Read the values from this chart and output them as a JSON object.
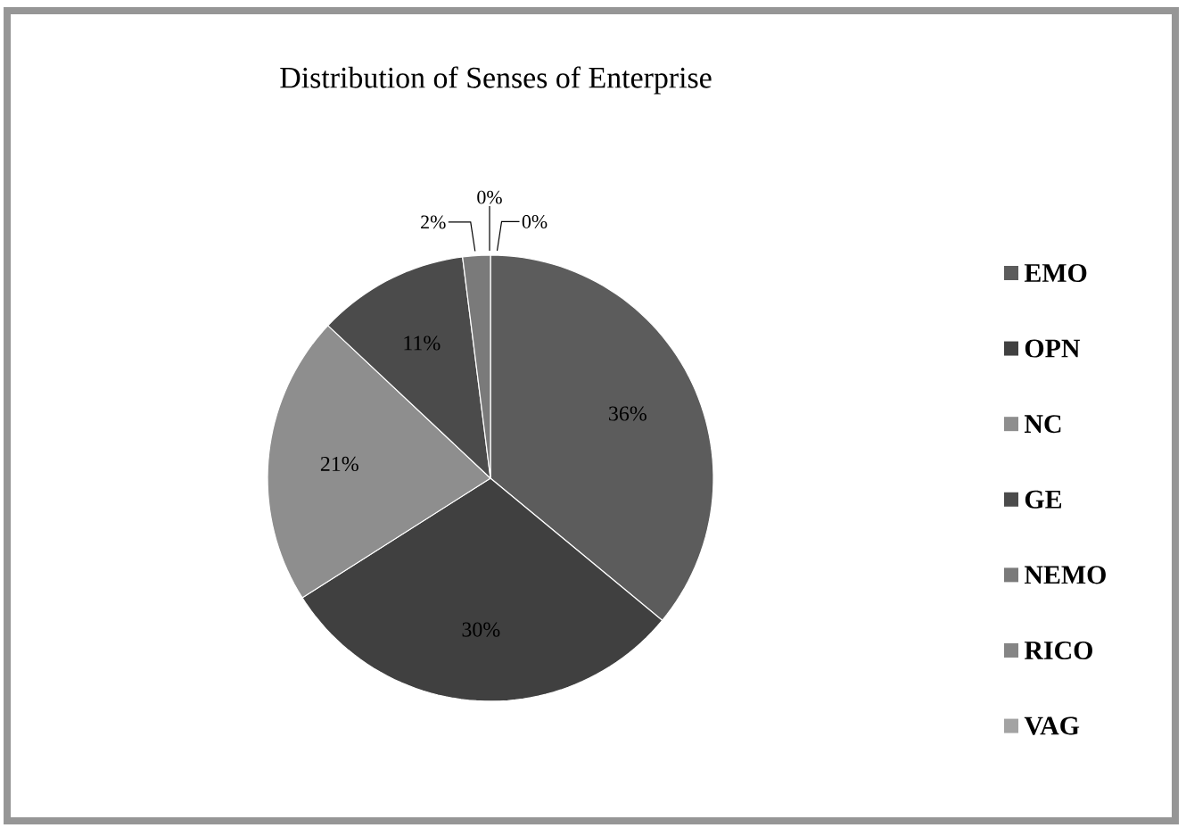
{
  "chart_data": {
    "type": "pie",
    "title": "Distribution of Senses of Enterprise",
    "categories": [
      "EMO",
      "OPN",
      "NC",
      "GE",
      "NEMO",
      "RICO",
      "VAG"
    ],
    "values": [
      36,
      30,
      21,
      11,
      2,
      0,
      0
    ],
    "colors": [
      "#5c5c5c",
      "#404040",
      "#8e8e8e",
      "#4b4b4b",
      "#7a7a7a",
      "#858585",
      "#a3a3a3"
    ],
    "value_labels": [
      "36%",
      "30%",
      "21%",
      "11%",
      "2%",
      "0%",
      "0%"
    ],
    "legend": "right"
  }
}
